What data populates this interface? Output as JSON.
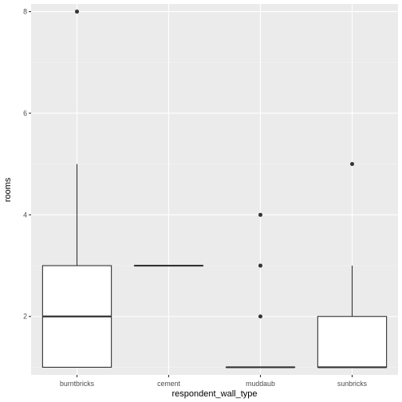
{
  "chart_data": {
    "type": "boxplot",
    "xlabel": "respondent_wall_type",
    "ylabel": "rooms",
    "categories": [
      "burntbricks",
      "cement",
      "muddaub",
      "sunbricks"
    ],
    "ylim": [
      0.85,
      8.15
    ],
    "yticks": [
      2,
      4,
      6,
      8
    ],
    "grid": true,
    "legend": "none",
    "boxes": [
      {
        "category": "burntbricks",
        "lower_whisker": 1,
        "q1": 1,
        "median": 2,
        "q3": 3,
        "upper_whisker": 5,
        "outliers": [
          8
        ]
      },
      {
        "category": "cement",
        "lower_whisker": 3,
        "q1": 3,
        "median": 3,
        "q3": 3,
        "upper_whisker": 3,
        "outliers": []
      },
      {
        "category": "muddaub",
        "lower_whisker": 1,
        "q1": 1,
        "median": 1,
        "q3": 1,
        "upper_whisker": 1,
        "outliers": [
          2,
          3,
          4
        ]
      },
      {
        "category": "sunbricks",
        "lower_whisker": 1,
        "q1": 1,
        "median": 1,
        "q3": 2,
        "upper_whisker": 3,
        "outliers": [
          5
        ]
      }
    ]
  },
  "colors": {
    "panel_background": "#ebebeb",
    "grid_major": "#ffffff",
    "grid_minor": "#f5f5f5",
    "box_fill": "#ffffff",
    "box_line": "#333333",
    "outlier": "#333333"
  }
}
